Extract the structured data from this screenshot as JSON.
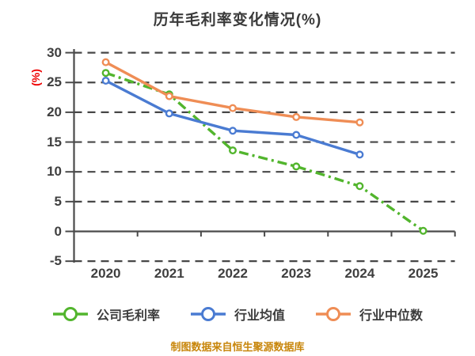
{
  "title": "历年毛利率变化情况(%)",
  "y_axis_label": "(%)",
  "caption": "制图数据来自恒生聚源数据库",
  "colors": {
    "title_text": "#3a3a3a",
    "axis_text": "#3f3f3f",
    "axis_line": "#4a4a4a",
    "gridline": "#474747",
    "y_label_red": "#ee0000",
    "caption_orange": "#c8860b",
    "marker_fill": "#ffffff"
  },
  "chart_data": {
    "type": "line",
    "title": "历年毛利率变化情况(%)",
    "ylabel": "(%)",
    "x": [
      "2020",
      "2021",
      "2022",
      "2023",
      "2024",
      "2025"
    ],
    "series": [
      {
        "key": "company-gross-margin",
        "name": "公司毛利率",
        "color": "#52b52d",
        "style": "dashdot",
        "values": [
          26.6,
          23.0,
          13.6,
          10.9,
          7.6,
          0.1
        ]
      },
      {
        "key": "industry-mean",
        "name": "行业均值",
        "color": "#4a7bd2",
        "style": "solid",
        "values": [
          25.3,
          19.8,
          16.9,
          16.2,
          12.9,
          null
        ]
      },
      {
        "key": "industry-median",
        "name": "行业中位数",
        "color": "#ef8d55",
        "style": "solid",
        "values": [
          28.4,
          22.7,
          20.7,
          19.2,
          18.3,
          null
        ]
      }
    ],
    "ylim": [
      -6,
      31
    ],
    "yticks": [
      30,
      25,
      20,
      15,
      10,
      5,
      0,
      -5
    ],
    "gridline_values": [
      30,
      25,
      20,
      15,
      10,
      5,
      -5
    ],
    "zero_axis": 0,
    "grid": true,
    "grid_style": "dashed",
    "legend_position": "bottom"
  }
}
